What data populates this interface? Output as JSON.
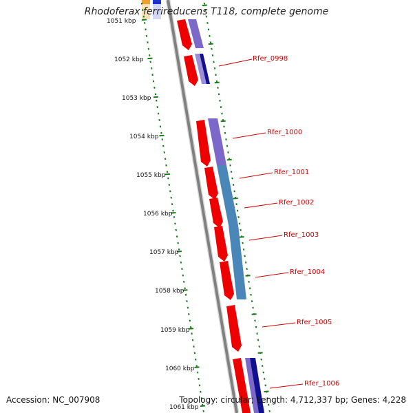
{
  "title": "Rhodoferax ferrireducens T118, complete genome",
  "footer": {
    "accession": "Accession: NC_007908",
    "summary": "Topology: circular; Length: 4,712,337 bp; Genes: 4,228"
  },
  "scale": {
    "ticks": [
      "1051 kbp",
      "1052 kbp",
      "1053 kbp",
      "1054 kbp",
      "1055 kbp",
      "1056 kbp",
      "1057 kbp",
      "1058 kbp",
      "1059 kbp",
      "1060 kbp",
      "1061 kbp"
    ]
  },
  "gene_labels": [
    "Rfer_0998",
    "Rfer_1000",
    "Rfer_1001",
    "Rfer_1002",
    "Rfer_1003",
    "Rfer_1004",
    "Rfer_1005",
    "Rfer_1006"
  ],
  "colors": {
    "cds": "#ee0000",
    "cog_purple": "#7b68c8",
    "cog_steelblue": "#4a86b8",
    "cog_navy": "#101090",
    "backbone": "#808080",
    "ticks": "#1a7a1a",
    "label": "#cc0000"
  }
}
